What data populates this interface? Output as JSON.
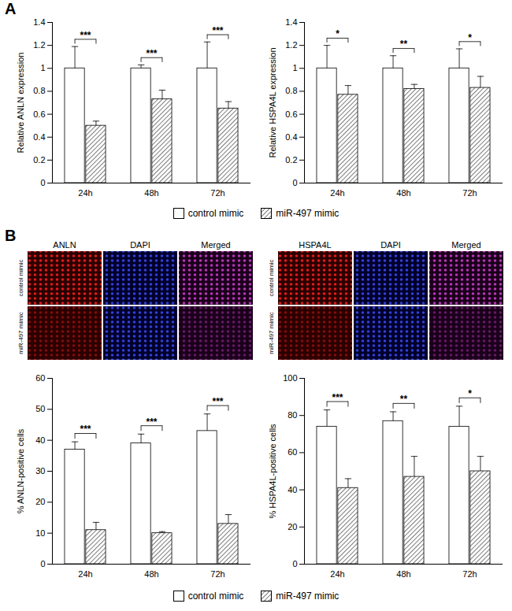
{
  "panel_labels": [
    "A",
    "B"
  ],
  "image_panels": [
    {
      "columns": [
        "ANLN",
        "DAPI",
        "Merged"
      ],
      "rows": [
        "control mimic",
        "miR-497 mimic"
      ]
    },
    {
      "columns": [
        "HSPA4L",
        "DAPI",
        "Merged"
      ],
      "rows": [
        "control mimic",
        "miR-497 mimic"
      ]
    }
  ],
  "chart_data": [
    {
      "type": "bar",
      "ylabel": "Relative ANLN expression",
      "categories": [
        "24h",
        "48h",
        "72h"
      ],
      "ylim": [
        0,
        1.4
      ],
      "yticks": [
        0,
        0.2,
        0.4,
        0.6,
        0.8,
        1,
        1.2,
        1.4
      ],
      "legend": "bottom",
      "series": [
        {
          "name": "control mimic",
          "color": "#ffffff",
          "values": [
            1,
            1,
            1
          ],
          "errors": [
            0.19,
            0.03,
            0.23
          ]
        },
        {
          "name": "miR-497 mimic",
          "color": "#444444",
          "values": [
            0.5,
            0.73,
            0.65
          ],
          "errors": [
            0.04,
            0.08,
            0.06
          ]
        }
      ],
      "significance": [
        "***",
        "***",
        "***"
      ]
    },
    {
      "type": "bar",
      "ylabel": "Relative HSPA4L expression",
      "categories": [
        "24h",
        "48h",
        "72h"
      ],
      "ylim": [
        0,
        1.4
      ],
      "yticks": [
        0,
        0.2,
        0.4,
        0.6,
        0.8,
        1,
        1.2,
        1.4
      ],
      "legend": "bottom",
      "series": [
        {
          "name": "control mimic",
          "color": "#ffffff",
          "values": [
            1,
            1,
            1
          ],
          "errors": [
            0.2,
            0.11,
            0.17
          ]
        },
        {
          "name": "miR-497 mimic",
          "color": "#444444",
          "values": [
            0.77,
            0.82,
            0.83
          ],
          "errors": [
            0.08,
            0.04,
            0.1
          ]
        }
      ],
      "significance": [
        "*",
        "**",
        "*"
      ]
    },
    {
      "type": "bar",
      "ylabel": "% ANLN-positive cells",
      "categories": [
        "24h",
        "48h",
        "72h"
      ],
      "ylim": [
        0,
        60
      ],
      "yticks": [
        0,
        10,
        20,
        30,
        40,
        50,
        60
      ],
      "legend": "bottom",
      "series": [
        {
          "name": "control mimic",
          "color": "#ffffff",
          "values": [
            37,
            39,
            43
          ],
          "errors": [
            2.5,
            3,
            5.5
          ]
        },
        {
          "name": "miR-497 mimic",
          "color": "#444444",
          "values": [
            11,
            10,
            13
          ],
          "errors": [
            2.5,
            0.5,
            3
          ]
        }
      ],
      "significance": [
        "***",
        "***",
        "***"
      ]
    },
    {
      "type": "bar",
      "ylabel": "% HSPA4L-positive cells",
      "categories": [
        "24h",
        "48h",
        "72h"
      ],
      "ylim": [
        0,
        100
      ],
      "yticks": [
        0,
        20,
        40,
        60,
        80,
        100
      ],
      "legend": "bottom",
      "series": [
        {
          "name": "control mimic",
          "color": "#ffffff",
          "values": [
            74,
            77,
            74
          ],
          "errors": [
            9,
            5,
            11
          ]
        },
        {
          "name": "miR-497 mimic",
          "color": "#444444",
          "values": [
            41,
            47,
            50
          ],
          "errors": [
            5,
            11,
            8
          ]
        }
      ],
      "significance": [
        "***",
        "**",
        "*"
      ]
    }
  ]
}
